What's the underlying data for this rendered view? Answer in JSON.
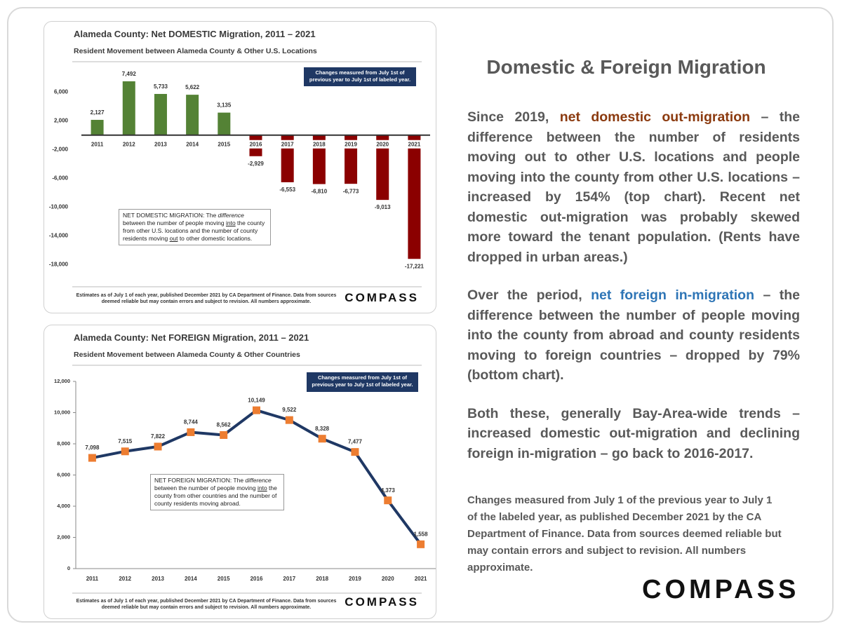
{
  "chart_data": [
    {
      "type": "bar",
      "title": "Alameda County: Net DOMESTIC Migration, 2011 – 2021",
      "subtitle": "Resident Movement between Alameda County & Other U.S. Locations",
      "note": "Changes measured from July 1st of previous year to July 1st of labeled year.",
      "definition": [
        {
          "text": "NET DOMESTIC MIGRATION: The "
        },
        {
          "text": "difference",
          "style": "italic"
        },
        {
          "text": " between the number of people moving "
        },
        {
          "text": "into",
          "style": "underline"
        },
        {
          "text": " the county from other U.S. locations and the number of county residents moving "
        },
        {
          "text": "out",
          "style": "underline"
        },
        {
          "text": " to other domestic locations."
        }
      ],
      "footnote": "Estimates as of July 1 of each year, published December 2021 by CA Department of Finance. Data from sources deemed reliable but may contain errors and subject to revision. All numbers approximate.",
      "logo": "COMPASS",
      "categories": [
        "2011",
        "2012",
        "2013",
        "2014",
        "2015",
        "2016",
        "2017",
        "2018",
        "2019",
        "2020",
        "2021"
      ],
      "values": [
        2127,
        7492,
        5733,
        5622,
        3135,
        -2929,
        -6553,
        -6810,
        -6773,
        -9013,
        -17221
      ],
      "value_labels": [
        "2,127",
        "7,492",
        "5,733",
        "5,622",
        "3,135",
        "-2,929",
        "-6,553",
        "-6,810",
        "-6,773",
        "-9,013",
        "-17,221"
      ],
      "color": "#548235",
      "negative_color": "#8b0000",
      "ylim": [
        -19000,
        9000
      ],
      "yticks": [
        {
          "value": 6000,
          "label": "6,000"
        },
        {
          "value": 2000,
          "label": "2,000"
        },
        {
          "value": -2000,
          "label": "-2,000"
        },
        {
          "value": -6000,
          "label": "-6,000"
        },
        {
          "value": -10000,
          "label": "-10,000"
        },
        {
          "value": -14000,
          "label": "-14,000"
        },
        {
          "value": -18000,
          "label": "-18,000"
        }
      ],
      "grid": false
    },
    {
      "type": "line",
      "title": "Alameda County: Net FOREIGN Migration, 2011 – 2021",
      "subtitle": "Resident Movement between Alameda County & Other Countries",
      "note": "Changes measured from July 1st of previous year to July 1st of labeled year.",
      "definition": [
        {
          "text": "NET FOREIGN MIGRATION: The "
        },
        {
          "text": "difference",
          "style": "italic"
        },
        {
          "text": " between the number of people moving "
        },
        {
          "text": "into",
          "style": "underline"
        },
        {
          "text": " the county from other countries and the number of county residents moving abroad."
        }
      ],
      "footnote": "Estimates as of July 1 of each year, published December 2021 by CA Department of Finance. Data from sources deemed reliable but may contain errors and subject to revision. All numbers approximate.",
      "logo": "COMPASS",
      "categories": [
        "2011",
        "2012",
        "2013",
        "2014",
        "2015",
        "2016",
        "2017",
        "2018",
        "2019",
        "2020",
        "2021"
      ],
      "values": [
        7098,
        7515,
        7822,
        8744,
        8562,
        10149,
        9522,
        8328,
        7477,
        4373,
        1558
      ],
      "value_labels": [
        "7,098",
        "7,515",
        "7,822",
        "8,744",
        "8,562",
        "10,149",
        "9,522",
        "8,328",
        "7,477",
        "4,373",
        "1,558"
      ],
      "color": "#1f3864",
      "marker_color": "#ed7d31",
      "ylim": [
        0,
        12000
      ],
      "yticks": [
        0,
        {
          "value": 2000,
          "label": "2,000"
        },
        {
          "value": 4000,
          "label": "4,000"
        },
        {
          "value": 6000,
          "label": "6,000"
        },
        {
          "value": 8000,
          "label": "8,000"
        },
        {
          "value": 10000,
          "label": "10,000"
        },
        {
          "value": 12000,
          "label": "12,000"
        }
      ],
      "grid": false
    }
  ],
  "panel": {
    "title": "Domestic & Foreign Migration",
    "paragraphs": [
      [
        {
          "text": "Since 2019, "
        },
        {
          "text": "net domestic out-migration",
          "color": "#8b3a0f"
        },
        {
          "text": " – the difference between the number of residents moving out to other U.S. locations and people moving into the county from other U.S. locations – increased by 154% (top chart). Recent net domestic out-migration was probably skewed more toward the tenant population. (Rents have dropped in urban areas.)"
        }
      ],
      [
        {
          "text": "Over the period, "
        },
        {
          "text": "net foreign in-migration",
          "color": "#2e75b6"
        },
        {
          "text": " – the difference between the number of people moving into the county from abroad and county residents moving to foreign countries – dropped by 79% (bottom chart)."
        }
      ],
      [
        {
          "text": "Both these, generally Bay-Area-wide trends – increased domestic out-migration and declining foreign in-migration – go back to 2016-2017."
        }
      ]
    ],
    "footnote": "Changes measured from July 1 of the previous year to July 1 of the labeled year, as published December 2021 by the CA Department of Finance. Data from sources deemed reliable but may contain errors and subject to revision. All numbers approximate.",
    "logo": "COMPASS"
  }
}
